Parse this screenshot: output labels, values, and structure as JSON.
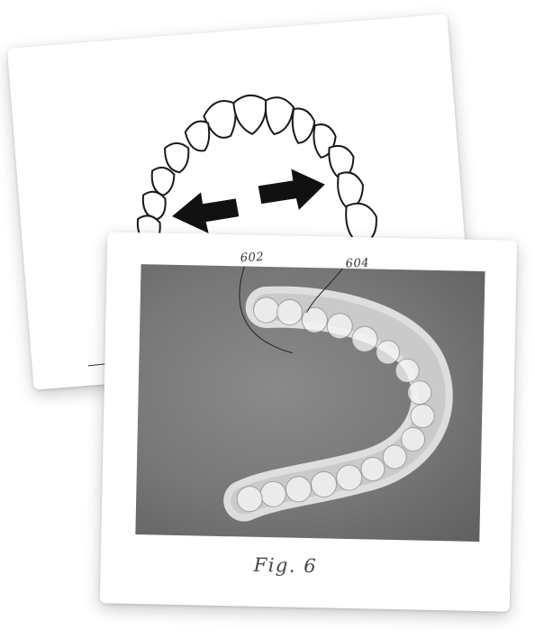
{
  "figure": {
    "caption": "Fig. 6",
    "reference_numerals": {
      "aligner_ref": "602",
      "tooth_ref": "604"
    }
  },
  "icons": {
    "expansion_arrow": "double-arrow-icon"
  },
  "colors": {
    "paper": "#ffffff",
    "photo_background": "#7a7a7a",
    "ink": "#1a1a1a"
  }
}
